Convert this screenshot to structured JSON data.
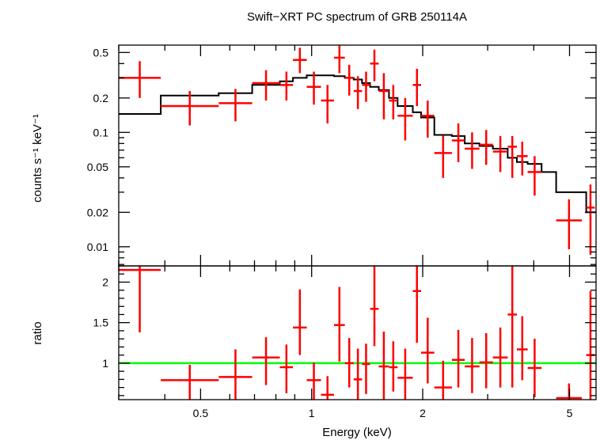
{
  "chart_data": {
    "type": "scatter",
    "title": "Swift−XRT PC spectrum of GRB 250114A",
    "xlabel": "Energy (keV)",
    "xscale": "log",
    "xlim": [
      0.3,
      5.9
    ],
    "x_ticks": [
      {
        "value": 0.5,
        "label": "0.5"
      },
      {
        "value": 1,
        "label": "1"
      },
      {
        "value": 2,
        "label": "2"
      },
      {
        "value": 5,
        "label": "5"
      }
    ],
    "panels": [
      {
        "id": "spectrum",
        "ylabel": "counts s⁻¹ keV⁻¹",
        "yscale": "log",
        "ylim": [
          0.0068,
          0.58
        ],
        "y_ticks": [
          {
            "value": 0.01,
            "label": "0.01"
          },
          {
            "value": 0.02,
            "label": "0.02"
          },
          {
            "value": 0.05,
            "label": "0.05"
          },
          {
            "value": 0.1,
            "label": "0.1"
          },
          {
            "value": 0.2,
            "label": "0.2"
          },
          {
            "value": 0.5,
            "label": "0.5"
          }
        ],
        "data": [
          {
            "xlo": 0.3,
            "xhi": 0.39,
            "y": 0.3,
            "ylo": 0.2,
            "yhi": 0.42
          },
          {
            "xlo": 0.39,
            "xhi": 0.56,
            "y": 0.17,
            "ylo": 0.115,
            "yhi": 0.23
          },
          {
            "xlo": 0.56,
            "xhi": 0.69,
            "y": 0.18,
            "ylo": 0.125,
            "yhi": 0.24
          },
          {
            "xlo": 0.69,
            "xhi": 0.82,
            "y": 0.27,
            "ylo": 0.19,
            "yhi": 0.35
          },
          {
            "xlo": 0.82,
            "xhi": 0.89,
            "y": 0.26,
            "ylo": 0.19,
            "yhi": 0.34
          },
          {
            "xlo": 0.89,
            "xhi": 0.97,
            "y": 0.43,
            "ylo": 0.33,
            "yhi": 0.55
          },
          {
            "xlo": 0.97,
            "xhi": 1.06,
            "y": 0.25,
            "ylo": 0.175,
            "yhi": 0.34
          },
          {
            "xlo": 1.06,
            "xhi": 1.15,
            "y": 0.19,
            "ylo": 0.12,
            "yhi": 0.26
          },
          {
            "xlo": 1.15,
            "xhi": 1.23,
            "y": 0.45,
            "ylo": 0.33,
            "yhi": 0.58
          },
          {
            "xlo": 1.23,
            "xhi": 1.3,
            "y": 0.3,
            "ylo": 0.21,
            "yhi": 0.39
          },
          {
            "xlo": 1.3,
            "xhi": 1.37,
            "y": 0.23,
            "ylo": 0.16,
            "yhi": 0.31
          },
          {
            "xlo": 1.37,
            "xhi": 1.44,
            "y": 0.26,
            "ylo": 0.185,
            "yhi": 0.34
          },
          {
            "xlo": 1.44,
            "xhi": 1.52,
            "y": 0.4,
            "ylo": 0.28,
            "yhi": 0.53
          },
          {
            "xlo": 1.52,
            "xhi": 1.62,
            "y": 0.23,
            "ylo": 0.13,
            "yhi": 0.33
          },
          {
            "xlo": 1.62,
            "xhi": 1.71,
            "y": 0.19,
            "ylo": 0.13,
            "yhi": 0.26
          },
          {
            "xlo": 1.71,
            "xhi": 1.88,
            "y": 0.14,
            "ylo": 0.085,
            "yhi": 0.2
          },
          {
            "xlo": 1.88,
            "xhi": 1.98,
            "y": 0.26,
            "ylo": 0.17,
            "yhi": 0.36
          },
          {
            "xlo": 1.98,
            "xhi": 2.15,
            "y": 0.14,
            "ylo": 0.09,
            "yhi": 0.19
          },
          {
            "xlo": 2.15,
            "xhi": 2.4,
            "y": 0.066,
            "ylo": 0.04,
            "yhi": 0.094
          },
          {
            "xlo": 2.4,
            "xhi": 2.6,
            "y": 0.085,
            "ylo": 0.055,
            "yhi": 0.12
          },
          {
            "xlo": 2.6,
            "xhi": 2.85,
            "y": 0.072,
            "ylo": 0.048,
            "yhi": 0.1
          },
          {
            "xlo": 2.85,
            "xhi": 3.1,
            "y": 0.078,
            "ylo": 0.052,
            "yhi": 0.105
          },
          {
            "xlo": 3.1,
            "xhi": 3.4,
            "y": 0.068,
            "ylo": 0.045,
            "yhi": 0.093
          },
          {
            "xlo": 3.4,
            "xhi": 3.6,
            "y": 0.075,
            "ylo": 0.04,
            "yhi": 0.093
          },
          {
            "xlo": 3.6,
            "xhi": 3.85,
            "y": 0.062,
            "ylo": 0.042,
            "yhi": 0.083
          },
          {
            "xlo": 3.85,
            "xhi": 4.2,
            "y": 0.045,
            "ylo": 0.028,
            "yhi": 0.062
          },
          {
            "xlo": 4.6,
            "xhi": 5.4,
            "y": 0.017,
            "ylo": 0.0095,
            "yhi": 0.026
          },
          {
            "xlo": 5.55,
            "xhi": 5.85,
            "y": 0.022,
            "ylo": 0.0085,
            "yhi": 0.035
          }
        ],
        "model": [
          {
            "x": 0.3,
            "y": 0.145
          },
          {
            "x": 0.39,
            "y": 0.21
          },
          {
            "x": 0.56,
            "y": 0.22
          },
          {
            "x": 0.69,
            "y": 0.26
          },
          {
            "x": 0.82,
            "y": 0.28
          },
          {
            "x": 0.89,
            "y": 0.3
          },
          {
            "x": 0.97,
            "y": 0.315
          },
          {
            "x": 1.15,
            "y": 0.31
          },
          {
            "x": 1.23,
            "y": 0.3
          },
          {
            "x": 1.3,
            "y": 0.29
          },
          {
            "x": 1.37,
            "y": 0.27
          },
          {
            "x": 1.44,
            "y": 0.25
          },
          {
            "x": 1.52,
            "y": 0.235
          },
          {
            "x": 1.62,
            "y": 0.2
          },
          {
            "x": 1.71,
            "y": 0.17
          },
          {
            "x": 1.88,
            "y": 0.15
          },
          {
            "x": 1.98,
            "y": 0.135
          },
          {
            "x": 2.15,
            "y": 0.095
          },
          {
            "x": 2.4,
            "y": 0.093
          },
          {
            "x": 2.6,
            "y": 0.08
          },
          {
            "x": 2.85,
            "y": 0.076
          },
          {
            "x": 3.1,
            "y": 0.072
          },
          {
            "x": 3.4,
            "y": 0.06
          },
          {
            "x": 3.6,
            "y": 0.055
          },
          {
            "x": 3.85,
            "y": 0.053
          },
          {
            "x": 4.2,
            "y": 0.045
          },
          {
            "x": 4.6,
            "y": 0.03
          },
          {
            "x": 5.4,
            "y": 0.03
          },
          {
            "x": 5.55,
            "y": 0.02
          },
          {
            "x": 5.9,
            "y": 0.02
          }
        ]
      },
      {
        "id": "ratio",
        "ylabel": "ratio",
        "yscale": "linear",
        "ylim": [
          0.55,
          2.2
        ],
        "y_ticks": [
          {
            "value": 1,
            "label": "1"
          },
          {
            "value": 1.5,
            "label": "1.5"
          },
          {
            "value": 2,
            "label": "2"
          }
        ],
        "reference_line": 1,
        "data": [
          {
            "xlo": 0.3,
            "xhi": 0.39,
            "y": 2.15,
            "ylo": 1.38,
            "yhi": 2.2
          },
          {
            "xlo": 0.39,
            "xhi": 0.56,
            "y": 0.79,
            "ylo": 0.55,
            "yhi": 0.98
          },
          {
            "xlo": 0.56,
            "xhi": 0.69,
            "y": 0.83,
            "ylo": 0.55,
            "yhi": 1.17
          },
          {
            "xlo": 0.69,
            "xhi": 0.82,
            "y": 1.07,
            "ylo": 0.73,
            "yhi": 1.32
          },
          {
            "xlo": 0.82,
            "xhi": 0.89,
            "y": 0.95,
            "ylo": 0.63,
            "yhi": 1.23
          },
          {
            "xlo": 0.89,
            "xhi": 0.97,
            "y": 1.44,
            "ylo": 1.1,
            "yhi": 1.91
          },
          {
            "xlo": 0.97,
            "xhi": 1.06,
            "y": 0.79,
            "ylo": 0.55,
            "yhi": 1.01
          },
          {
            "xlo": 1.06,
            "xhi": 1.15,
            "y": 0.61,
            "ylo": 0.55,
            "yhi": 0.84
          },
          {
            "xlo": 1.15,
            "xhi": 1.23,
            "y": 1.47,
            "ylo": 1.02,
            "yhi": 1.94
          },
          {
            "xlo": 1.23,
            "xhi": 1.3,
            "y": 1.0,
            "ylo": 0.7,
            "yhi": 1.31
          },
          {
            "xlo": 1.3,
            "xhi": 1.37,
            "y": 0.8,
            "ylo": 0.55,
            "yhi": 1.18
          },
          {
            "xlo": 1.37,
            "xhi": 1.44,
            "y": 0.99,
            "ylo": 0.62,
            "yhi": 1.24
          },
          {
            "xlo": 1.44,
            "xhi": 1.52,
            "y": 1.67,
            "ylo": 1.21,
            "yhi": 2.2
          },
          {
            "xlo": 1.52,
            "xhi": 1.62,
            "y": 0.96,
            "ylo": 0.55,
            "yhi": 1.39
          },
          {
            "xlo": 1.62,
            "xhi": 1.71,
            "y": 0.95,
            "ylo": 0.65,
            "yhi": 1.27
          },
          {
            "xlo": 1.71,
            "xhi": 1.88,
            "y": 0.82,
            "ylo": 0.55,
            "yhi": 1.18
          },
          {
            "xlo": 1.88,
            "xhi": 1.98,
            "y": 1.89,
            "ylo": 1.25,
            "yhi": 2.2
          },
          {
            "xlo": 1.98,
            "xhi": 2.15,
            "y": 1.13,
            "ylo": 0.75,
            "yhi": 1.56
          },
          {
            "xlo": 2.15,
            "xhi": 2.4,
            "y": 0.7,
            "ylo": 0.55,
            "yhi": 1.03
          },
          {
            "xlo": 2.4,
            "xhi": 2.6,
            "y": 1.04,
            "ylo": 0.7,
            "yhi": 1.41
          },
          {
            "xlo": 2.6,
            "xhi": 2.85,
            "y": 0.96,
            "ylo": 0.63,
            "yhi": 1.31
          },
          {
            "xlo": 2.85,
            "xhi": 3.1,
            "y": 1.01,
            "ylo": 0.69,
            "yhi": 1.37
          },
          {
            "xlo": 3.1,
            "xhi": 3.4,
            "y": 1.07,
            "ylo": 0.7,
            "yhi": 1.44
          },
          {
            "xlo": 3.4,
            "xhi": 3.6,
            "y": 1.6,
            "ylo": 0.7,
            "yhi": 2.2
          },
          {
            "xlo": 3.6,
            "xhi": 3.85,
            "y": 1.17,
            "ylo": 0.79,
            "yhi": 1.58
          },
          {
            "xlo": 3.85,
            "xhi": 4.2,
            "y": 0.94,
            "ylo": 0.58,
            "yhi": 1.3
          },
          {
            "xlo": 4.6,
            "xhi": 5.4,
            "y": 0.57,
            "ylo": 0.55,
            "yhi": 0.75
          },
          {
            "xlo": 5.55,
            "xhi": 5.85,
            "y": 1.1,
            "ylo": 0.55,
            "yhi": 1.89
          }
        ]
      }
    ],
    "colors": {
      "data": "#ff0000",
      "model": "#000000",
      "reference_line": "#00ff00",
      "axes": "#000000"
    }
  }
}
